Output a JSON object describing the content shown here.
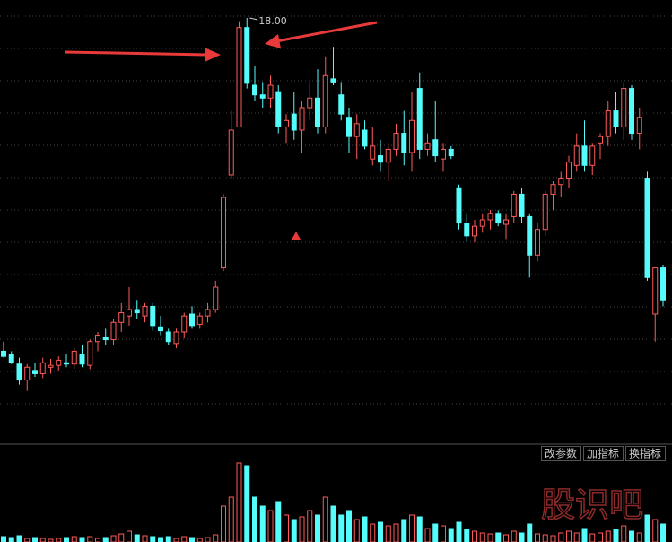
{
  "chart_data": {
    "type": "candlestick",
    "open": [
      12.8,
      12.75,
      12.6,
      12.35,
      12.5,
      12.45,
      12.55,
      12.58,
      12.62,
      12.6,
      12.75,
      12.58,
      12.95,
      13.02,
      12.98,
      13.25,
      13.35,
      13.45,
      13.35,
      13.5,
      13.18,
      13.1,
      12.92,
      13.1,
      13.38,
      13.22,
      13.35,
      13.45,
      14.1,
      15.55,
      16.3,
      17.85,
      16.95,
      16.8,
      16.75,
      16.85,
      16.3,
      16.5,
      16.25,
      16.6,
      16.75,
      16.3,
      17.05,
      16.8,
      16.45,
      16.15,
      16.25,
      15.8,
      15.85,
      15.75,
      15.95,
      16.2,
      15.9,
      16.9,
      15.95,
      16.1,
      15.8,
      15.95,
      15.35,
      14.8,
      14.6,
      14.75,
      14.85,
      14.95,
      14.78,
      14.9,
      15.25,
      14.9,
      14.3,
      14.7,
      15.25,
      15.4,
      15.5,
      15.7,
      16.0,
      15.7,
      16.05,
      16.15,
      16.55,
      16.3,
      16.9,
      16.2,
      15.5,
      13.38,
      14.1
    ],
    "high": [
      12.95,
      12.8,
      12.7,
      12.6,
      12.62,
      12.7,
      12.68,
      12.72,
      12.75,
      12.85,
      12.9,
      12.98,
      13.1,
      13.15,
      13.3,
      13.55,
      13.8,
      13.6,
      13.55,
      13.55,
      13.35,
      13.15,
      13.15,
      13.4,
      13.5,
      13.4,
      13.55,
      13.9,
      15.25,
      16.55,
      17.95,
      18.0,
      17.25,
      17.0,
      17.1,
      16.95,
      16.5,
      16.85,
      16.7,
      17.0,
      17.2,
      17.4,
      17.55,
      17.0,
      16.6,
      16.5,
      16.4,
      16.3,
      16.1,
      16.05,
      16.35,
      16.55,
      16.85,
      17.15,
      16.2,
      16.7,
      16.05,
      16.0,
      15.4,
      14.95,
      14.85,
      14.95,
      15.0,
      15.0,
      14.95,
      15.3,
      15.35,
      14.95,
      14.8,
      15.3,
      15.45,
      15.6,
      15.85,
      16.2,
      16.4,
      16.05,
      16.2,
      16.7,
      16.85,
      17.0,
      16.95,
      16.6,
      15.6,
      14.1,
      14.15
    ],
    "low": [
      12.7,
      12.6,
      12.28,
      12.18,
      12.4,
      12.38,
      12.45,
      12.5,
      12.55,
      12.52,
      12.55,
      12.52,
      12.8,
      12.9,
      12.9,
      13.1,
      13.2,
      13.3,
      13.25,
      13.12,
      13.05,
      12.9,
      12.85,
      13.0,
      13.15,
      13.15,
      13.25,
      13.4,
      14.05,
      15.5,
      16.3,
      16.9,
      16.7,
      16.6,
      16.6,
      16.2,
      16.05,
      16.1,
      15.9,
      16.4,
      16.2,
      16.2,
      16.95,
      16.4,
      15.9,
      15.8,
      15.95,
      15.7,
      15.6,
      15.45,
      15.85,
      15.7,
      15.6,
      15.8,
      15.85,
      15.75,
      15.6,
      15.8,
      14.7,
      14.5,
      14.5,
      14.65,
      14.7,
      14.75,
      14.55,
      14.8,
      14.8,
      13.95,
      14.2,
      14.6,
      15.0,
      15.2,
      15.35,
      15.6,
      15.6,
      15.55,
      15.8,
      16.0,
      16.2,
      16.1,
      16.1,
      15.95,
      13.9,
      12.95,
      13.5
    ],
    "close": [
      12.72,
      12.62,
      12.35,
      12.55,
      12.45,
      12.62,
      12.58,
      12.66,
      12.6,
      12.8,
      12.6,
      12.95,
      13.05,
      12.98,
      13.25,
      13.4,
      13.45,
      13.4,
      13.5,
      13.2,
      13.12,
      12.95,
      13.1,
      13.35,
      13.2,
      13.35,
      13.45,
      13.8,
      15.2,
      16.25,
      17.85,
      16.98,
      16.8,
      16.75,
      16.95,
      16.3,
      16.4,
      16.25,
      16.6,
      16.75,
      16.3,
      17.1,
      17.0,
      16.5,
      16.15,
      16.35,
      16.0,
      16.0,
      15.75,
      15.95,
      16.2,
      15.9,
      16.4,
      15.95,
      16.05,
      15.85,
      15.95,
      15.85,
      14.8,
      14.6,
      14.75,
      14.85,
      14.95,
      14.8,
      14.85,
      15.25,
      14.9,
      14.3,
      14.7,
      15.25,
      15.4,
      15.5,
      15.75,
      16.0,
      15.7,
      16.0,
      16.15,
      16.55,
      16.3,
      16.9,
      16.2,
      16.45,
      13.95,
      14.1,
      13.6
    ],
    "volume": [
      6,
      5,
      7,
      4,
      5,
      4,
      3,
      4,
      5,
      6,
      5,
      6,
      4,
      5,
      7,
      9,
      12,
      8,
      7,
      6,
      5,
      6,
      4,
      6,
      5,
      4,
      5,
      8,
      40,
      50,
      88,
      85,
      50,
      40,
      35,
      45,
      30,
      25,
      28,
      35,
      30,
      50,
      40,
      30,
      35,
      25,
      28,
      20,
      22,
      18,
      20,
      25,
      30,
      28,
      15,
      20,
      18,
      15,
      22,
      14,
      12,
      10,
      9,
      10,
      8,
      12,
      10,
      20,
      9,
      8,
      7,
      10,
      12,
      10,
      15,
      9,
      10,
      12,
      14,
      18,
      12,
      10,
      30,
      25,
      20
    ],
    "ylim": [
      11.42,
      18.28
    ],
    "volume_ylim": [
      0,
      100
    ],
    "up_color": "#ff5a5a",
    "down_color": "#54fcfc",
    "max_marker": {
      "value": 18.0,
      "label": "18.00"
    },
    "buttons": [
      "改参数",
      "加指标",
      "换指标"
    ],
    "watermark": "股识吧"
  }
}
